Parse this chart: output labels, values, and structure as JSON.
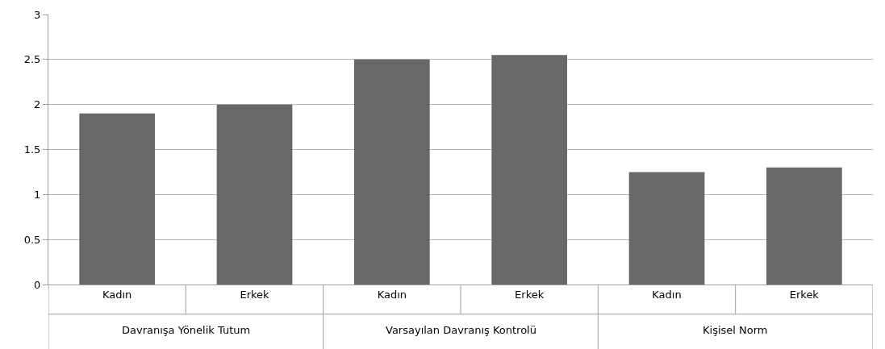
{
  "chart_data": {
    "type": "bar",
    "categories": [
      "Kadın",
      "Erkek",
      "Kadın",
      "Erkek",
      "Kadın",
      "Erkek"
    ],
    "values": [
      1.9,
      2.0,
      2.5,
      2.55,
      1.25,
      1.3
    ],
    "color": "#686868",
    "ylim": [
      0,
      3
    ],
    "yticks": [
      0,
      0.5,
      1,
      1.5,
      2,
      2.5,
      3
    ],
    "grid": "y",
    "annotations": [
      "Davranışa Yönelik Tutum",
      "Varsayılan Davranış Kontrolü",
      "Kişisel Norm"
    ]
  }
}
